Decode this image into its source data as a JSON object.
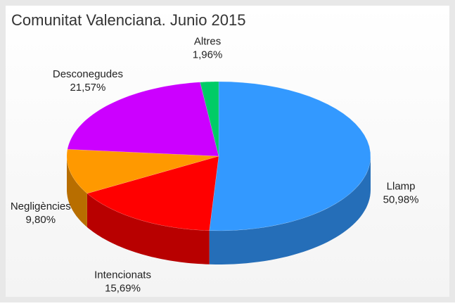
{
  "chart_data": {
    "type": "pie",
    "title": "Comunitat Valenciana. Junio 2015",
    "categories": [
      "Llamp",
      "Intencionats",
      "Negligències",
      "Desconegudes",
      "Altres"
    ],
    "values": [
      50.98,
      15.69,
      9.8,
      21.57,
      1.96
    ],
    "value_labels": [
      "50,98%",
      "15,69%",
      "9,80%",
      "21,57%",
      "1,96%"
    ],
    "colors": [
      "#3399ff",
      "#ff0000",
      "#ff9900",
      "#cc00ff",
      "#00cc66"
    ]
  }
}
